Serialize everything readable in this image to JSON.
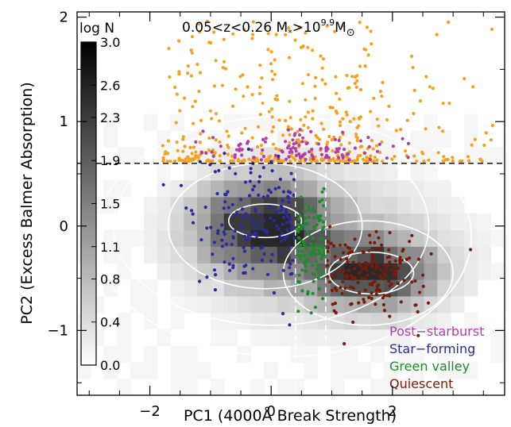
{
  "chart_data": {
    "type": "heatmap",
    "title_main": "0.05<z<0.26 M",
    "title_star": "*",
    "title_gt": ">10",
    "title_exp": "9.9",
    "title_msun": "M",
    "title_sun": "⊙",
    "xlabel": "PC1 (4000Å Break Strength)",
    "ylabel": "PC2 (Excess Balmer Absorption)",
    "xlim": [
      -3.2,
      3.85
    ],
    "ylim": [
      -1.62,
      2.05
    ],
    "x_ticks": [
      -2,
      0,
      2
    ],
    "x_tick_labels": [
      "−2",
      "0",
      "2"
    ],
    "y_ticks": [
      -1,
      0,
      1,
      2
    ],
    "y_tick_labels": [
      "−1",
      "0",
      "1",
      "2"
    ],
    "grid": false,
    "colorbar": {
      "title": "log N",
      "range": [
        0.0,
        3.0
      ],
      "tick_values": [
        3.0,
        2.6,
        2.3,
        1.9,
        1.5,
        1.1,
        0.8,
        0.4,
        0.0
      ],
      "tick_labels": [
        "3.0",
        "2.6",
        "2.3",
        "1.9",
        "1.5",
        "1.1",
        "0.8",
        "0.4",
        "0.0"
      ],
      "colormap": "white-to-black"
    },
    "reference_lines": {
      "horizontal_y": 0.6,
      "vertical_x": [
        0.4,
        0.9
      ]
    },
    "legend": {
      "placement": "bottom-right",
      "entries": [
        {
          "label": "Post−starburst",
          "color": "#b03fa6"
        },
        {
          "label": "Star−forming",
          "color": "#2a2aa2"
        },
        {
          "label": "Green valley",
          "color": "#1f8a2e"
        },
        {
          "label": "Quiescent",
          "color": "#7a1a08"
        }
      ]
    },
    "series": [
      {
        "name": "Post−starburst",
        "color": "#b03fa6",
        "marker_color": "#b03fa6",
        "region": "PC2 > 0.6, concentrated near PC1 −1.3 to 2.0",
        "approx_count": 110
      },
      {
        "name": "Star−forming",
        "color": "#2a2aa2",
        "region": "PC1 < 0.4, centred near (−0.2, 0.0)",
        "approx_count": 170
      },
      {
        "name": "Green valley",
        "color": "#1f8a2e",
        "region": "0.4 < PC1 < 0.9, centred near (0.65, −0.2)",
        "approx_count": 120
      },
      {
        "name": "Quiescent",
        "color": "#7a1a08",
        "region": "PC1 > 0.9, centred near (1.7, −0.45)",
        "approx_count": 170
      }
    ],
    "extra_points": {
      "color": "#f5a11c",
      "region": "PC2 > 0.6, spread over PC1 −1.8 to 3.8",
      "approx_count": 430
    },
    "density_peaks": [
      {
        "x": -0.1,
        "y": 0.0,
        "logN": 3.0
      },
      {
        "x": 1.7,
        "y": -0.45,
        "logN": 2.9
      }
    ]
  }
}
